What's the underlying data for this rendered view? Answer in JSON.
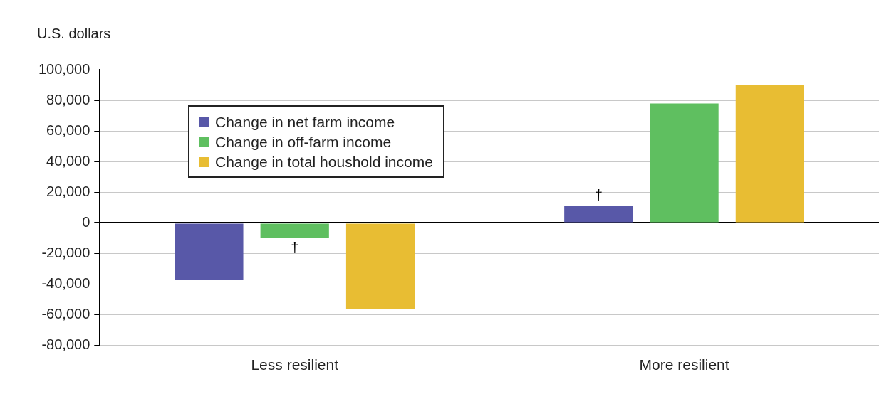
{
  "chart_data": {
    "type": "bar",
    "ylabel": "U.S. dollars",
    "categories": [
      "Less resilient",
      "More resilient"
    ],
    "series": [
      {
        "name": "Change in net farm income",
        "color": "#5858a8",
        "values": [
          -37000,
          11000
        ],
        "value_labels": [
          null,
          "†"
        ]
      },
      {
        "name": "Change in off-farm income",
        "color": "#5fbf60",
        "values": [
          -10000,
          78000
        ],
        "value_labels": [
          "†",
          null
        ]
      },
      {
        "name": "Change in total houshold income",
        "color": "#e8bd33",
        "values": [
          -56000,
          90000
        ]
      }
    ],
    "ylim": [
      -80000,
      100000
    ],
    "yticks": [
      {
        "value": -80000,
        "label": "-80,000"
      },
      {
        "value": -60000,
        "label": "-60,000"
      },
      {
        "value": -40000,
        "label": "-40,000"
      },
      {
        "value": -20000,
        "label": "-20,000"
      },
      0,
      {
        "value": 20000,
        "label": "20,000"
      },
      {
        "value": 40000,
        "label": "40,000"
      },
      {
        "value": 60000,
        "label": "60,000"
      },
      {
        "value": 80000,
        "label": "80,000"
      },
      {
        "value": 100000,
        "label": "100,000"
      }
    ],
    "grid": "y",
    "legend": "top left"
  }
}
